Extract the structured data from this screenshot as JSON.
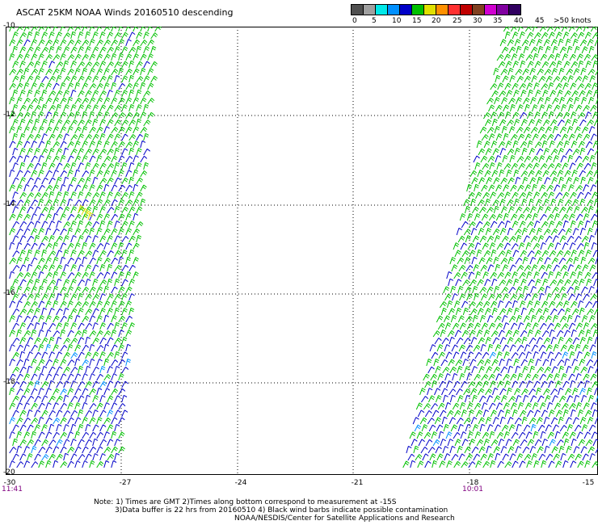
{
  "header": {
    "title": "ASCAT 25KM NOAA Winds 20160510 descending"
  },
  "legend": {
    "colors": [
      "#505050",
      "#a0a0a0",
      "#00e8e8",
      "#0090ff",
      "#0000c8",
      "#00c000",
      "#e0e000",
      "#ff9000",
      "#ff3030",
      "#c00000",
      "#804020",
      "#d000d0",
      "#8000a0",
      "#300060"
    ],
    "labels": [
      "0",
      "5",
      "10",
      "15",
      "20",
      "25",
      "30",
      "35",
      "40",
      "45",
      ">50 knots"
    ]
  },
  "axes": {
    "lat_ticks": [
      "-10",
      "-12",
      "-14",
      "-16",
      "-18",
      "-20"
    ],
    "lon_ticks": [
      "-30",
      "-27",
      "-24",
      "-21",
      "-18",
      "-15"
    ]
  },
  "swaths": {
    "left_time": "11:41",
    "right_time": "10:01"
  },
  "notes": {
    "line1": "Note: 1) Times are GMT 2)Times along bottom correspond to measurement at -15S",
    "line2": "3)Data buffer is 22 hrs from 20160510 4) Black wind barbs indicate possible contamination",
    "line3": "NOAA/NESDIS/Center for Satellite Applications and Research"
  }
}
